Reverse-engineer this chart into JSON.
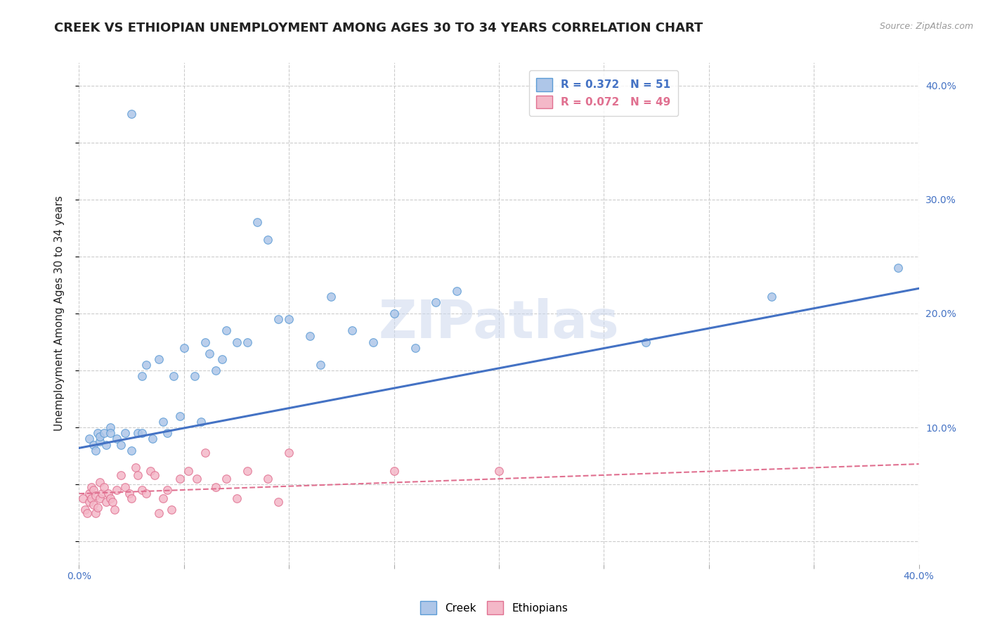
{
  "title": "CREEK VS ETHIOPIAN UNEMPLOYMENT AMONG AGES 30 TO 34 YEARS CORRELATION CHART",
  "source": "Source: ZipAtlas.com",
  "ylabel": "Unemployment Among Ages 30 to 34 years",
  "xlim": [
    0.0,
    0.4
  ],
  "ylim": [
    -0.02,
    0.42
  ],
  "xticks": [
    0.0,
    0.05,
    0.1,
    0.15,
    0.2,
    0.25,
    0.3,
    0.35,
    0.4
  ],
  "yticks": [
    0.0,
    0.05,
    0.1,
    0.15,
    0.2,
    0.25,
    0.3,
    0.35,
    0.4
  ],
  "watermark": "ZIPatlas",
  "creek_color": "#aec6e8",
  "creek_edge_color": "#5b9bd5",
  "ethiopian_color": "#f4b8c8",
  "ethiopian_edge_color": "#e07090",
  "creek_line_color": "#4472c4",
  "ethiopian_line_color": "#e07090",
  "legend_creek_label": "R = 0.372   N = 51",
  "legend_ethiopian_label": "R = 0.072   N = 49",
  "background_color": "#ffffff",
  "title_fontsize": 13,
  "axis_label_fontsize": 11,
  "tick_fontsize": 10,
  "marker_size": 70,
  "title_color": "#222222",
  "axis_color": "#4472c4",
  "grid_color": "#cccccc",
  "grid_style": "--",
  "legend_fontsize": 11,
  "creek_scatter_x": [
    0.005,
    0.007,
    0.008,
    0.009,
    0.01,
    0.01,
    0.012,
    0.013,
    0.015,
    0.015,
    0.018,
    0.02,
    0.022,
    0.025,
    0.025,
    0.028,
    0.03,
    0.03,
    0.032,
    0.035,
    0.038,
    0.04,
    0.042,
    0.045,
    0.048,
    0.05,
    0.055,
    0.058,
    0.06,
    0.062,
    0.065,
    0.068,
    0.07,
    0.075,
    0.08,
    0.085,
    0.09,
    0.095,
    0.1,
    0.11,
    0.115,
    0.12,
    0.13,
    0.14,
    0.15,
    0.16,
    0.17,
    0.18,
    0.27,
    0.33,
    0.39
  ],
  "creek_scatter_y": [
    0.09,
    0.085,
    0.08,
    0.095,
    0.088,
    0.092,
    0.095,
    0.085,
    0.1,
    0.095,
    0.09,
    0.085,
    0.095,
    0.375,
    0.08,
    0.095,
    0.145,
    0.095,
    0.155,
    0.09,
    0.16,
    0.105,
    0.095,
    0.145,
    0.11,
    0.17,
    0.145,
    0.105,
    0.175,
    0.165,
    0.15,
    0.16,
    0.185,
    0.175,
    0.175,
    0.28,
    0.265,
    0.195,
    0.195,
    0.18,
    0.155,
    0.215,
    0.185,
    0.175,
    0.2,
    0.17,
    0.21,
    0.22,
    0.175,
    0.215,
    0.24
  ],
  "ethiopian_scatter_x": [
    0.002,
    0.003,
    0.004,
    0.005,
    0.005,
    0.006,
    0.006,
    0.007,
    0.007,
    0.008,
    0.008,
    0.009,
    0.01,
    0.01,
    0.011,
    0.012,
    0.013,
    0.014,
    0.015,
    0.016,
    0.017,
    0.018,
    0.02,
    0.022,
    0.024,
    0.025,
    0.027,
    0.028,
    0.03,
    0.032,
    0.034,
    0.036,
    0.038,
    0.04,
    0.042,
    0.044,
    0.048,
    0.052,
    0.056,
    0.06,
    0.065,
    0.07,
    0.075,
    0.08,
    0.09,
    0.095,
    0.1,
    0.15,
    0.2
  ],
  "ethiopian_scatter_y": [
    0.038,
    0.028,
    0.025,
    0.042,
    0.035,
    0.048,
    0.038,
    0.032,
    0.045,
    0.04,
    0.025,
    0.03,
    0.052,
    0.038,
    0.042,
    0.048,
    0.035,
    0.042,
    0.038,
    0.035,
    0.028,
    0.045,
    0.058,
    0.048,
    0.042,
    0.038,
    0.065,
    0.058,
    0.045,
    0.042,
    0.062,
    0.058,
    0.025,
    0.038,
    0.045,
    0.028,
    0.055,
    0.062,
    0.055,
    0.078,
    0.048,
    0.055,
    0.038,
    0.062,
    0.055,
    0.035,
    0.078,
    0.062,
    0.062
  ],
  "creek_line_x0": 0.0,
  "creek_line_y0": 0.082,
  "creek_line_x1": 0.4,
  "creek_line_y1": 0.222,
  "eth_line_x0": 0.0,
  "eth_line_y0": 0.042,
  "eth_line_x1": 0.4,
  "eth_line_y1": 0.068
}
